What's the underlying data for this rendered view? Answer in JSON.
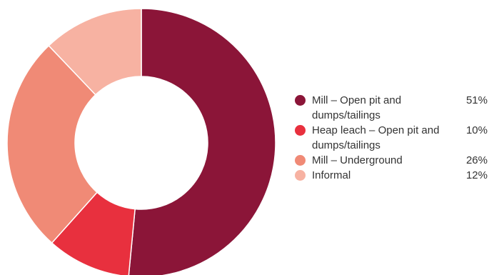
{
  "chart_data": {
    "type": "pie",
    "donut": true,
    "title": "",
    "legend_position": "right",
    "slices": [
      {
        "label": "Mill – Open pit and dumps/tailings",
        "value": 51,
        "value_label": "51%",
        "color": "#8B1538"
      },
      {
        "label": "Heap leach – Open pit and dumps/tailings",
        "value": 10,
        "value_label": "10%",
        "color": "#E8303E"
      },
      {
        "label": "Mill – Underground",
        "value": 26,
        "value_label": "26%",
        "color": "#F08A76"
      },
      {
        "label": "Informal",
        "value": 12,
        "value_label": "12%",
        "color": "#F7B2A2"
      }
    ]
  }
}
